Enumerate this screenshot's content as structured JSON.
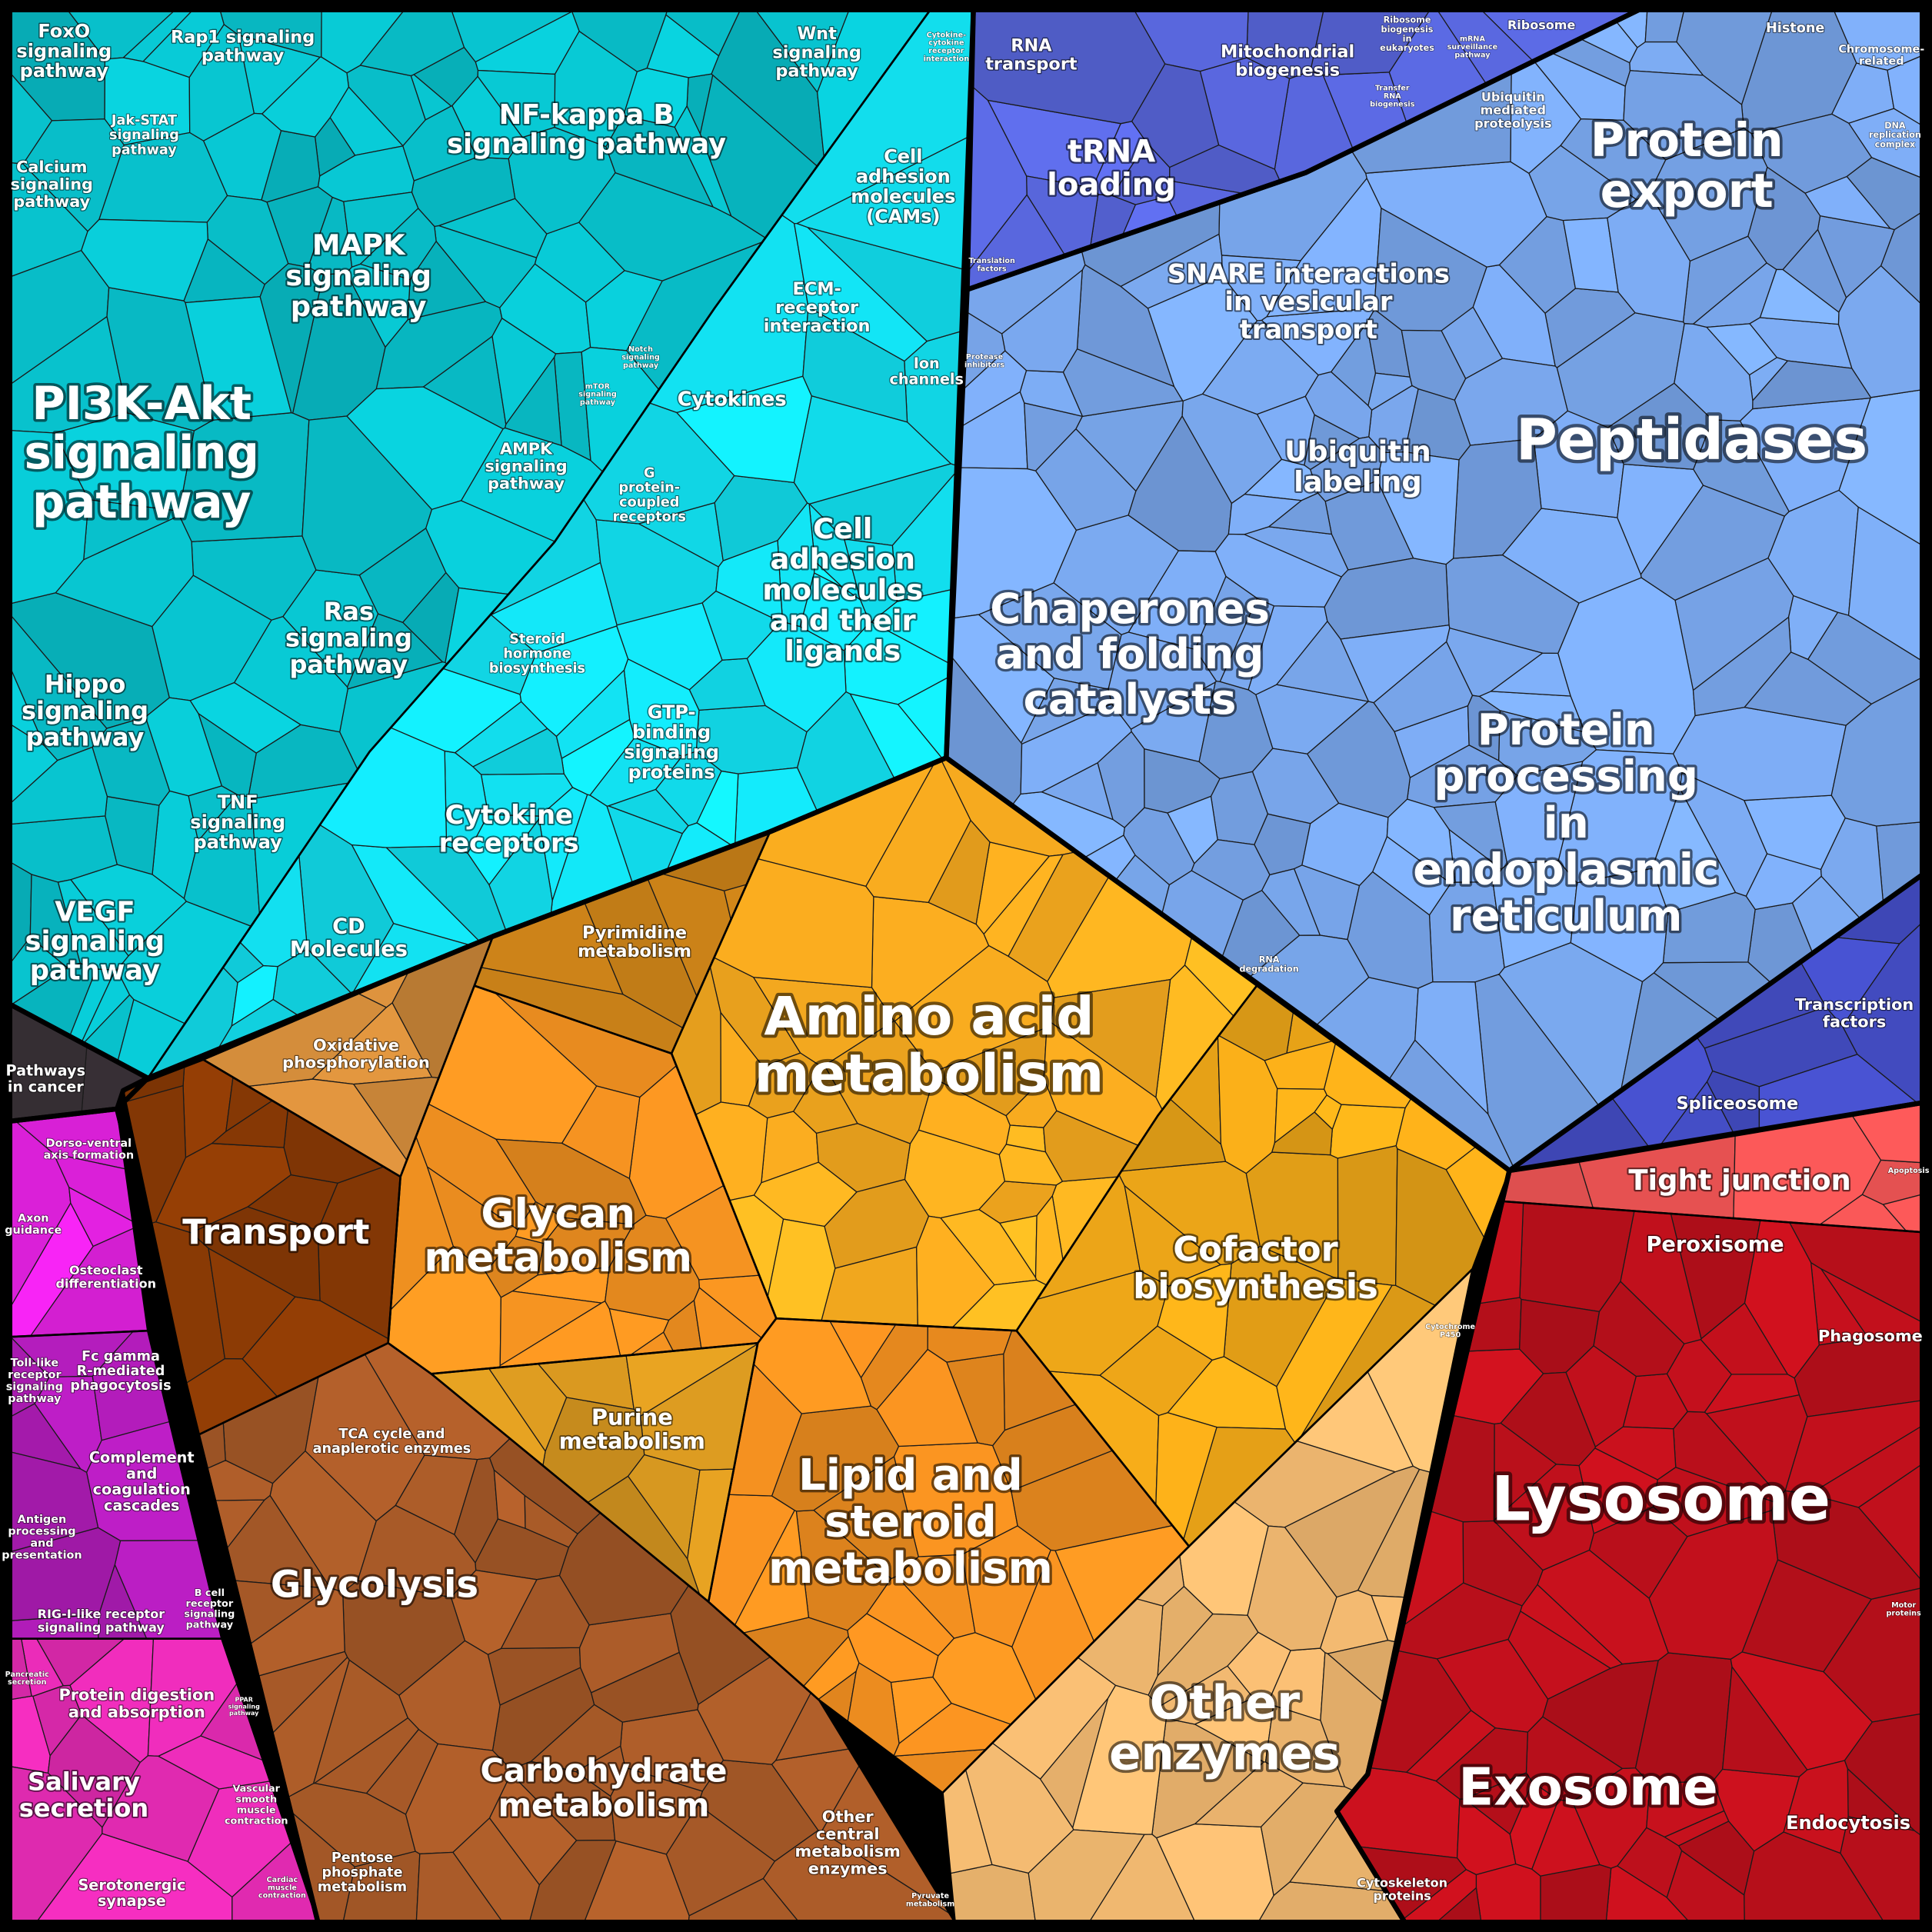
{
  "labels": [
    {
      "lines": [
        "FoxO",
        "signaling",
        "pathway"
      ]
    },
    {
      "lines": [
        "Rap1 signaling",
        "pathway"
      ]
    },
    {
      "lines": [
        "Calcium",
        "signaling",
        "pathway"
      ]
    },
    {
      "lines": [
        "Jak-STAT",
        "signaling",
        "pathway"
      ]
    },
    {
      "lines": [
        "NF-kappa B",
        "signaling pathway"
      ]
    },
    {
      "lines": [
        "Wnt",
        "signaling",
        "pathway"
      ]
    },
    {
      "lines": [
        "Cytokine-",
        "cytokine",
        "receptor",
        "interaction"
      ]
    },
    {
      "lines": [
        "MAPK",
        "signaling",
        "pathway"
      ]
    },
    {
      "lines": [
        "Cell",
        "adhesion",
        "molecules",
        "(CAMs)"
      ]
    },
    {
      "lines": [
        "ECM-",
        "receptor",
        "interaction"
      ]
    },
    {
      "lines": [
        "Ion",
        "channels"
      ]
    },
    {
      "lines": [
        "Notch",
        "signaling",
        "pathway"
      ]
    },
    {
      "lines": [
        "mTOR",
        "signaling",
        "pathway"
      ]
    },
    {
      "lines": [
        "Cytokines"
      ]
    },
    {
      "lines": [
        "PI3K-Akt",
        "signaling",
        "pathway"
      ]
    },
    {
      "lines": [
        "AMPK",
        "signaling",
        "pathway"
      ]
    },
    {
      "lines": [
        "G",
        "protein-",
        "coupled",
        "receptors"
      ]
    },
    {
      "lines": [
        "Cell",
        "adhesion",
        "molecules",
        "and their",
        "ligands"
      ]
    },
    {
      "lines": [
        "Ras",
        "signaling",
        "pathway"
      ]
    },
    {
      "lines": [
        "Steroid",
        "hormone",
        "biosynthesis"
      ]
    },
    {
      "lines": [
        "Hippo",
        "signaling",
        "pathway"
      ]
    },
    {
      "lines": [
        "GTP-",
        "binding",
        "signaling",
        "proteins"
      ]
    },
    {
      "lines": [
        "TNF",
        "signaling",
        "pathway"
      ]
    },
    {
      "lines": [
        "Cytokine",
        "receptors"
      ]
    },
    {
      "lines": [
        "VEGF",
        "signaling",
        "pathway"
      ]
    },
    {
      "lines": [
        "CD",
        "Molecules"
      ]
    },
    {
      "lines": [
        "Pathways",
        "in cancer"
      ]
    },
    {
      "lines": [
        "Dorso-ventral",
        "axis formation"
      ]
    },
    {
      "lines": [
        "Axon",
        "guidance"
      ]
    },
    {
      "lines": [
        "Osteoclast",
        "differentiation"
      ]
    },
    {
      "lines": [
        "Toll-like",
        "receptor",
        "signaling",
        "pathway"
      ]
    },
    {
      "lines": [
        "Fc gamma",
        "R-mediated",
        "phagocytosis"
      ]
    },
    {
      "lines": [
        "Complement",
        "and",
        "coagulation",
        "cascades"
      ]
    },
    {
      "lines": [
        "Antigen",
        "processing",
        "and",
        "presentation"
      ]
    },
    {
      "lines": [
        "RIG-I-like receptor",
        "signaling pathway"
      ]
    },
    {
      "lines": [
        "B cell",
        "receptor",
        "signaling",
        "pathway"
      ]
    },
    {
      "lines": [
        "Pancreatic",
        "secretion"
      ]
    },
    {
      "lines": [
        "Protein digestion",
        "and absorption"
      ]
    },
    {
      "lines": [
        "PPAR",
        "signaling",
        "pathway"
      ]
    },
    {
      "lines": [
        "Salivary",
        "secretion"
      ]
    },
    {
      "lines": [
        "Vascular",
        "smooth",
        "muscle",
        "contraction"
      ]
    },
    {
      "lines": [
        "Serotonergic",
        "synapse"
      ]
    },
    {
      "lines": [
        "Cardiac",
        "muscle",
        "contraction"
      ]
    },
    {
      "lines": [
        "RNA",
        "transport"
      ]
    },
    {
      "lines": [
        "Mitochondrial",
        "biogenesis"
      ]
    },
    {
      "lines": [
        "Ribosome",
        "biogenesis",
        "in",
        "eukaryotes"
      ]
    },
    {
      "lines": [
        "mRNA",
        "surveillance",
        "pathway"
      ]
    },
    {
      "lines": [
        "Ribosome"
      ]
    },
    {
      "lines": [
        "Transfer",
        "RNA",
        "biogenesis"
      ]
    },
    {
      "lines": [
        "tRNA",
        "loading"
      ]
    },
    {
      "lines": [
        "Translation",
        "factors"
      ]
    },
    {
      "lines": [
        "Histone"
      ]
    },
    {
      "lines": [
        "Chromosome-",
        "related"
      ]
    },
    {
      "lines": [
        "DNA",
        "replication",
        "complex"
      ]
    },
    {
      "lines": [
        "Ubiquitin",
        "mediated",
        "proteolysis"
      ]
    },
    {
      "lines": [
        "Protein",
        "export"
      ]
    },
    {
      "lines": [
        "SNARE interactions",
        "in vesicular",
        "transport"
      ]
    },
    {
      "lines": [
        "Protease",
        "inhibitors"
      ]
    },
    {
      "lines": [
        "Peptidases"
      ]
    },
    {
      "lines": [
        "Ubiquitin",
        "labeling"
      ]
    },
    {
      "lines": [
        "Chaperones",
        "and folding",
        "catalysts"
      ]
    },
    {
      "lines": [
        "Protein",
        "processing",
        "in",
        "endoplasmic",
        "reticulum"
      ]
    },
    {
      "lines": [
        "RNA",
        "degradation"
      ]
    },
    {
      "lines": [
        "Transcription",
        "factors"
      ]
    },
    {
      "lines": [
        "Spliceosome"
      ]
    },
    {
      "lines": [
        "Tight junction"
      ]
    },
    {
      "lines": [
        "Apoptosis"
      ]
    },
    {
      "lines": [
        "Peroxisome"
      ]
    },
    {
      "lines": [
        "Phagosome"
      ]
    },
    {
      "lines": [
        "Lysosome"
      ]
    },
    {
      "lines": [
        "Motor",
        "proteins"
      ]
    },
    {
      "lines": [
        "Exosome"
      ]
    },
    {
      "lines": [
        "Endocytosis"
      ]
    },
    {
      "lines": [
        "Cytoskeleton",
        "proteins"
      ]
    },
    {
      "lines": [
        "Pyrimidine",
        "metabolism"
      ]
    },
    {
      "lines": [
        "Oxidative",
        "phosphorylation"
      ]
    },
    {
      "lines": [
        "Amino acid",
        "metabolism"
      ]
    },
    {
      "lines": [
        "Transport"
      ]
    },
    {
      "lines": [
        "Glycan",
        "metabolism"
      ]
    },
    {
      "lines": [
        "Cofactor",
        "biosynthesis"
      ]
    },
    {
      "lines": [
        "Cytochrome",
        "P450"
      ]
    },
    {
      "lines": [
        "TCA cycle and",
        "anaplerotic enzymes"
      ]
    },
    {
      "lines": [
        "Purine",
        "metabolism"
      ]
    },
    {
      "lines": [
        "Lipid and",
        "steroid",
        "metabolism"
      ]
    },
    {
      "lines": [
        "Glycolysis"
      ]
    },
    {
      "lines": [
        "Other",
        "enzymes"
      ]
    },
    {
      "lines": [
        "Carbohydrate",
        "metabolism"
      ]
    },
    {
      "lines": [
        "Other",
        "central",
        "metabolism",
        "enzymes"
      ]
    },
    {
      "lines": [
        "Pentose",
        "phosphate",
        "metabolism"
      ]
    },
    {
      "lines": [
        "Pyruvate",
        "metabolism"
      ]
    }
  ]
}
